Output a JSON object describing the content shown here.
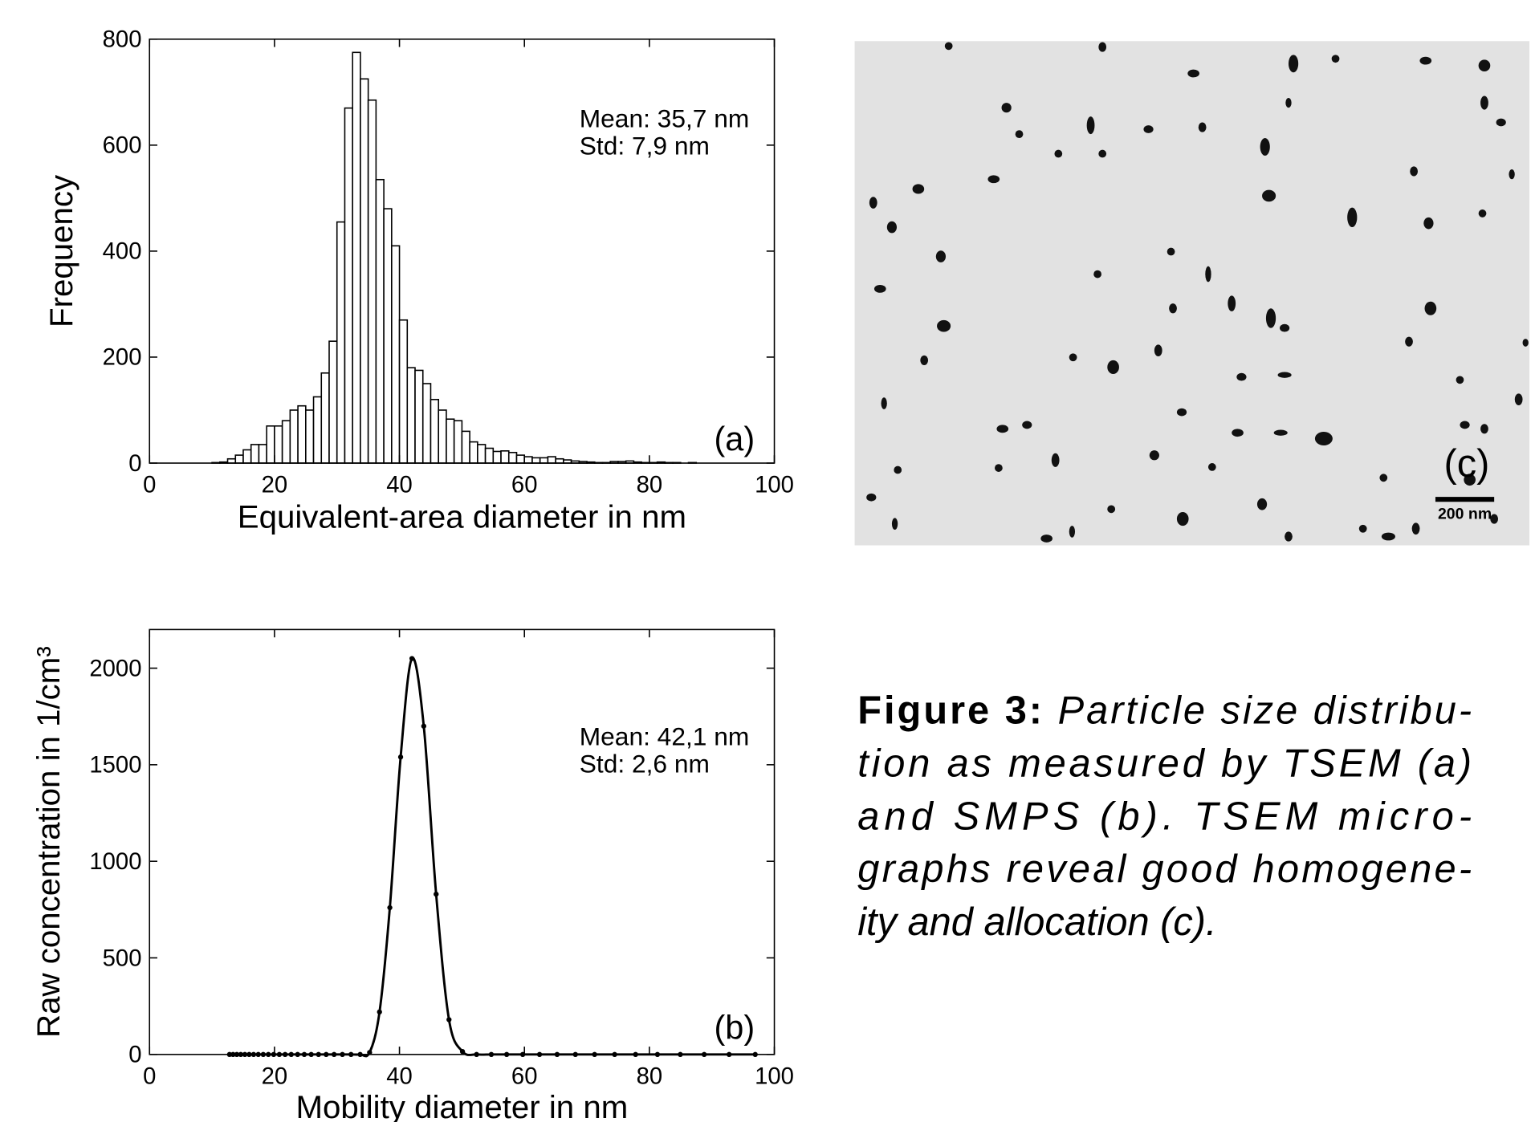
{
  "chart_data": [
    {
      "type": "histogram",
      "xlabel": "Equivalent-area diameter in nm",
      "ylabel": "Frequency",
      "annotations": [
        "Mean: 35,7 nm",
        "Std: 7,9 nm"
      ],
      "panel_label": "(a)",
      "bins": [
        7.5,
        8.75,
        10,
        11.25,
        12.5,
        13.75,
        15,
        16.25,
        17.5,
        18.75,
        20,
        21.25,
        22.5,
        23.75,
        25,
        26.25,
        27.5,
        28.75,
        30,
        31.25,
        32.5,
        33.75,
        35,
        36.25,
        37.5,
        38.75,
        40,
        41.25,
        42.5,
        43.75,
        45,
        46.25,
        47.5,
        48.75,
        50,
        51.25,
        52.5,
        53.75,
        55,
        56.25,
        57.5,
        58.75,
        60,
        61.25,
        62.5,
        63.75,
        65,
        66.25,
        67.5,
        68.75,
        70,
        71.25,
        72.5,
        73.75,
        75,
        76.25,
        77.5,
        78.75,
        80,
        81.25,
        82.5,
        83.75,
        85,
        86.25,
        87.5,
        88.75,
        90,
        91.25,
        92.5,
        93.75,
        95
      ],
      "values": [
        0,
        0,
        1,
        2,
        8,
        15,
        25,
        35,
        35,
        70,
        70,
        80,
        100,
        108,
        100,
        125,
        170,
        230,
        455,
        670,
        775,
        725,
        685,
        535,
        480,
        410,
        270,
        180,
        175,
        150,
        120,
        100,
        83,
        80,
        60,
        40,
        35,
        28,
        22,
        23,
        20,
        15,
        12,
        10,
        10,
        12,
        8,
        6,
        4,
        3,
        2,
        1,
        1,
        3,
        3,
        4,
        2,
        1,
        1,
        2,
        1,
        1,
        0,
        1,
        0,
        0,
        0,
        0,
        0,
        0
      ],
      "color": "#ffffff",
      "edgecolor": "#000000",
      "xlim": [
        0,
        100
      ],
      "xticks": [
        0,
        20,
        40,
        60,
        80,
        100
      ],
      "ylim": [
        0,
        800
      ],
      "yticks": [
        0,
        200,
        400,
        600,
        800
      ]
    },
    {
      "type": "line",
      "xlabel": "Mobility diameter in nm",
      "ylabel": "Raw concentration in 1/cm³",
      "annotations": [
        "Mean: 42,1 nm",
        "Std: 2,6 nm"
      ],
      "panel_label": "(b)",
      "x": [
        12.8,
        13.37,
        13.97,
        14.6,
        15.26,
        15.95,
        16.66,
        17.41,
        18.2,
        19.02,
        19.87,
        20.77,
        21.7,
        22.68,
        23.7,
        24.77,
        25.88,
        27.05,
        28.27,
        29.54,
        30.87,
        32.25,
        33.71,
        35.22,
        36.81,
        38.46,
        40.19,
        42.0,
        43.89,
        45.87,
        47.93,
        50.09,
        52.34,
        54.7,
        57.16,
        59.73,
        62.42,
        65.23,
        68.16,
        71.23,
        74.44,
        77.79,
        81.29,
        84.95,
        88.77,
        92.76,
        96.94
      ],
      "values": [
        0,
        0,
        0,
        0,
        0,
        0,
        0,
        0,
        0,
        0,
        0,
        0,
        0,
        0,
        0,
        0,
        0,
        0,
        0,
        0,
        0,
        0,
        0,
        10,
        220,
        760,
        1540,
        2050,
        1700,
        830,
        180,
        15,
        0,
        0,
        0,
        0,
        0,
        0,
        0,
        0,
        0,
        0,
        0,
        0,
        0,
        0,
        0
      ],
      "color": "#000000",
      "markers": true,
      "xlim": [
        0,
        100
      ],
      "xticks": [
        0,
        20,
        40,
        60,
        80,
        100
      ],
      "ylim": [
        0,
        2200
      ],
      "yticks": [
        0,
        500,
        1000,
        1500,
        2000
      ]
    }
  ],
  "micrograph": {
    "panel_label": "(c)",
    "scale_bar": "200 nm"
  },
  "caption": {
    "label": "Figure 3:",
    "lines": [
      "Particle size distribu-",
      "tion as measured by TSEM (a)",
      "and SMPS (b).  TSEM micro-",
      "graphs reveal good homogene-",
      "ity and allocation (c)."
    ]
  }
}
